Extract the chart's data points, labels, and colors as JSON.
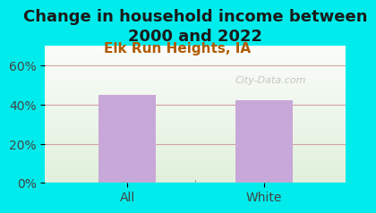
{
  "title": "Change in household income between\n2000 and 2022",
  "subtitle": "Elk Run Heights, IA",
  "categories": [
    "All",
    "White"
  ],
  "values": [
    45,
    42
  ],
  "bar_color": "#c8a8d8",
  "bar_width": 0.42,
  "ylim": [
    0,
    70
  ],
  "yticks": [
    0,
    20,
    40,
    60
  ],
  "ytick_labels": [
    "0%",
    "20%",
    "40%",
    "60%"
  ],
  "background_outer": "#00ecec",
  "grid_color": "#d4a0a0",
  "watermark": "City-Data.com",
  "title_fontsize": 13,
  "subtitle_fontsize": 11,
  "subtitle_color": "#b05a00",
  "tick_fontsize": 10,
  "title_color": "#1a1a1a"
}
